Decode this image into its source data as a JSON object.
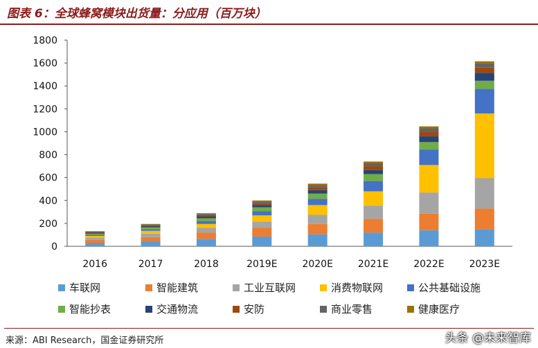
{
  "title": "图表 6：全球蜂窝模块出货量：分应用（百万块）",
  "source": "来源：ABI Research，国金证券研究所",
  "watermark": "头条 @未来智库",
  "chart_data": {
    "type": "bar",
    "stacked": true,
    "categories": [
      "2016",
      "2017",
      "2018",
      "2019E",
      "2020E",
      "2021E",
      "2022E",
      "2023E"
    ],
    "ylim": [
      0,
      1800
    ],
    "yticks": [
      0,
      200,
      400,
      600,
      800,
      1000,
      1200,
      1400,
      1600,
      1800
    ],
    "grid": false,
    "legend_position": "bottom",
    "series": [
      {
        "name": "车联网",
        "color": "#5b9bd5",
        "values": [
          30,
          45,
          65,
          85,
          105,
          120,
          140,
          150
        ]
      },
      {
        "name": "智能建筑",
        "color": "#ed7d31",
        "values": [
          25,
          35,
          55,
          75,
          90,
          120,
          145,
          180
        ]
      },
      {
        "name": "工业互联网",
        "color": "#a5a5a5",
        "values": [
          20,
          30,
          40,
          55,
          80,
          115,
          185,
          265
        ]
      },
      {
        "name": "消费物联网",
        "color": "#ffc000",
        "values": [
          15,
          25,
          35,
          55,
          85,
          125,
          240,
          565
        ]
      },
      {
        "name": "公共基础设施",
        "color": "#4472c4",
        "values": [
          10,
          15,
          25,
          35,
          55,
          90,
          135,
          215
        ]
      },
      {
        "name": "智能抄表",
        "color": "#70ad47",
        "values": [
          10,
          15,
          25,
          35,
          45,
          60,
          65,
          70
        ]
      },
      {
        "name": "交通物流",
        "color": "#264478",
        "values": [
          8,
          10,
          15,
          20,
          30,
          35,
          50,
          70
        ]
      },
      {
        "name": "安防",
        "color": "#9e480e",
        "values": [
          6,
          8,
          12,
          15,
          25,
          35,
          40,
          45
        ]
      },
      {
        "name": "商业零售",
        "color": "#636363",
        "values": [
          5,
          7,
          10,
          15,
          20,
          25,
          30,
          35
        ]
      },
      {
        "name": "健康医疗",
        "color": "#997300",
        "values": [
          3,
          5,
          7,
          10,
          12,
          15,
          17,
          20
        ]
      }
    ]
  }
}
